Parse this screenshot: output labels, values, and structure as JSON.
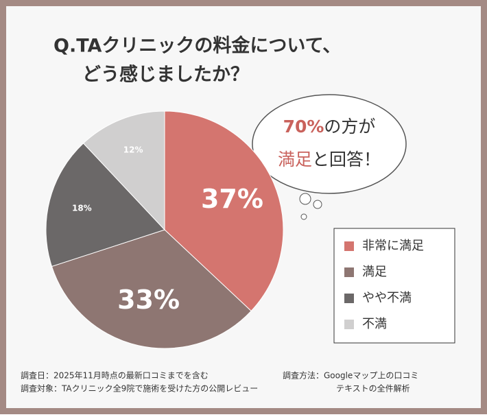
{
  "chart_data": {
    "type": "pie",
    "title": [
      "Q.TAクリニックの料金について、",
      "どう感じましたか？"
    ],
    "categories": [
      "非常に満足",
      "満足",
      "やや不満",
      "不満"
    ],
    "values": [
      37,
      33,
      18,
      12
    ],
    "value_labels": [
      "37%",
      "33%",
      "18%",
      "12%"
    ],
    "colors": [
      "#d4756f",
      "#8e7672",
      "#6b6868",
      "#d0cfcf"
    ],
    "callout": [
      [
        "70%",
        "の方が"
      ],
      [
        "満足",
        "と回答！"
      ]
    ],
    "notes": [
      "調査日：2025年11月時点の最新口コミまでを含む",
      "調査方法：Googleマップ上の口コミ",
      "テキストの全件解析",
      "調査対象：TAクリニック全9院で施術を受けた方の公開レビュー"
    ]
  }
}
